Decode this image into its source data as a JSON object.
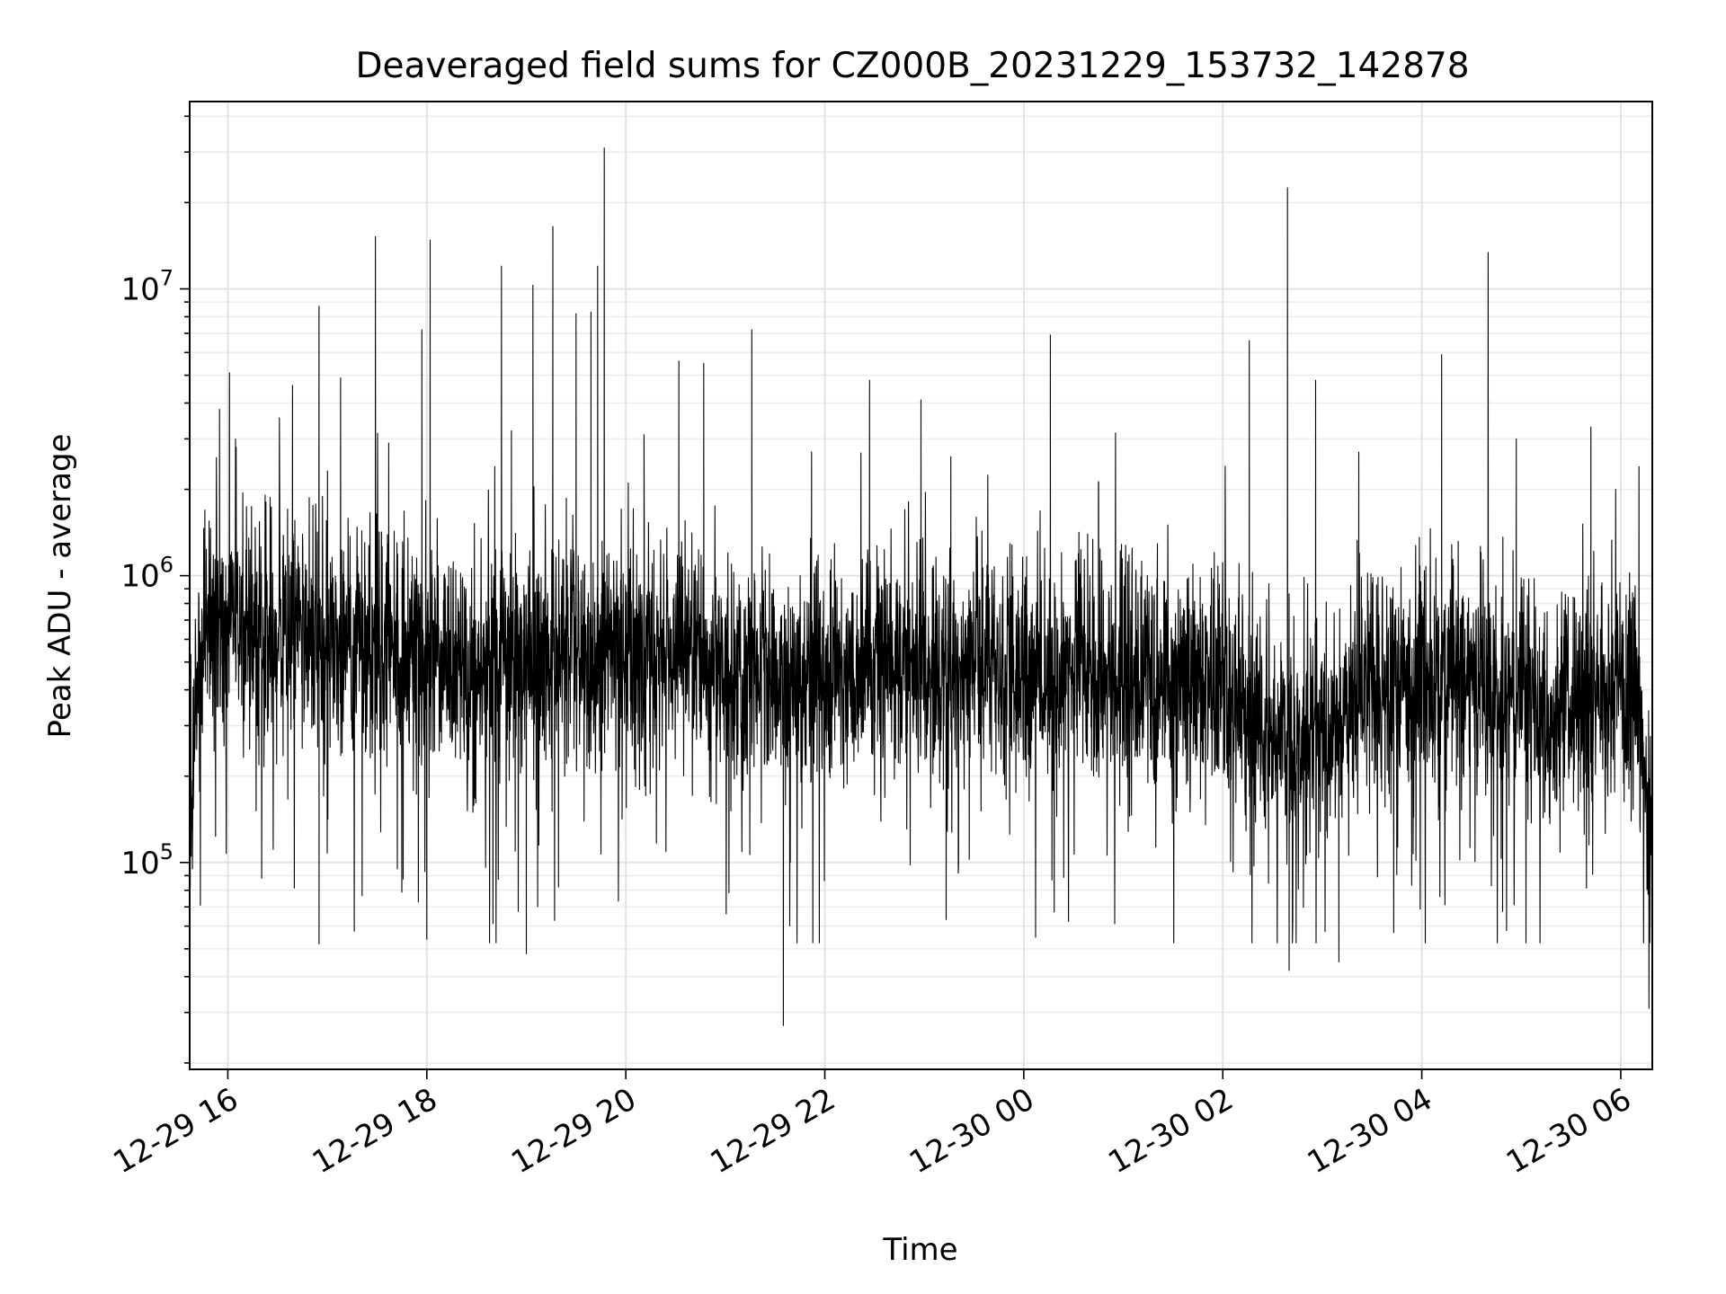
{
  "chart_data": {
    "type": "line",
    "title": "Deaveraged field sums for CZ000B_20231229_153732_142878",
    "xlabel": "Time",
    "ylabel": "Peak ADU - average",
    "yscale": "log",
    "xlim": [
      "2023-12-29 15:37",
      "2023-12-30 06:19"
    ],
    "ylim": [
      19000,
      45000000
    ],
    "grid": true,
    "line_color": "#000000",
    "x_ticks": [
      {
        "time": "2023-12-29 16:00",
        "label": "12-29 16"
      },
      {
        "time": "2023-12-29 18:00",
        "label": "12-29 18"
      },
      {
        "time": "2023-12-29 20:00",
        "label": "12-29 20"
      },
      {
        "time": "2023-12-29 22:00",
        "label": "12-29 22"
      },
      {
        "time": "2023-12-30 00:00",
        "label": "12-30 00"
      },
      {
        "time": "2023-12-30 02:00",
        "label": "12-30 02"
      },
      {
        "time": "2023-12-30 04:00",
        "label": "12-30 04"
      },
      {
        "time": "2023-12-30 06:00",
        "label": "12-30 06"
      }
    ],
    "y_ticks": [
      {
        "value": 100000,
        "base": "10",
        "exp": "5"
      },
      {
        "value": 1000000,
        "base": "10",
        "exp": "6"
      },
      {
        "value": 10000000,
        "base": "10",
        "exp": "7"
      }
    ],
    "series": [
      {
        "baseline": [
          [
            "2023-12-29 15:37",
            150000
          ],
          [
            "2023-12-29 15:45",
            700000
          ],
          [
            "2023-12-29 16:30",
            650000
          ],
          [
            "2023-12-29 17:30",
            550000
          ],
          [
            "2023-12-29 18:30",
            480000
          ],
          [
            "2023-12-29 19:30",
            520000
          ],
          [
            "2023-12-29 20:30",
            560000
          ],
          [
            "2023-12-29 21:00",
            480000
          ],
          [
            "2023-12-29 22:00",
            430000
          ],
          [
            "2023-12-29 23:00",
            470000
          ],
          [
            "2023-12-30 00:00",
            480000
          ],
          [
            "2023-12-30 01:00",
            460000
          ],
          [
            "2023-12-30 02:00",
            430000
          ],
          [
            "2023-12-30 02:30",
            280000
          ],
          [
            "2023-12-30 03:00",
            270000
          ],
          [
            "2023-12-30 03:30",
            420000
          ],
          [
            "2023-12-30 04:30",
            470000
          ],
          [
            "2023-12-30 05:15",
            330000
          ],
          [
            "2023-12-30 05:45",
            380000
          ],
          [
            "2023-12-30 06:10",
            420000
          ],
          [
            "2023-12-30 06:19",
            80000
          ]
        ],
        "peaks": [
          [
            "2023-12-29 15:55",
            3800000
          ],
          [
            "2023-12-29 16:01",
            5100000
          ],
          [
            "2023-12-29 16:05",
            2800000
          ],
          [
            "2023-12-29 16:39",
            4600000
          ],
          [
            "2023-12-29 16:55",
            8700000
          ],
          [
            "2023-12-29 17:08",
            4900000
          ],
          [
            "2023-12-29 17:29",
            15200000
          ],
          [
            "2023-12-29 17:37",
            2900000
          ],
          [
            "2023-12-29 17:57",
            7200000
          ],
          [
            "2023-12-29 18:02",
            14800000
          ],
          [
            "2023-12-29 18:41",
            2400000
          ],
          [
            "2023-12-29 18:45",
            12000000
          ],
          [
            "2023-12-29 18:51",
            3200000
          ],
          [
            "2023-12-29 19:04",
            10300000
          ],
          [
            "2023-12-29 19:16",
            16500000
          ],
          [
            "2023-12-29 19:30",
            8200000
          ],
          [
            "2023-12-29 19:39",
            8300000
          ],
          [
            "2023-12-29 19:43",
            12000000
          ],
          [
            "2023-12-29 19:47",
            31000000
          ],
          [
            "2023-12-29 20:11",
            3100000
          ],
          [
            "2023-12-29 20:32",
            5600000
          ],
          [
            "2023-12-29 20:47",
            5500000
          ],
          [
            "2023-12-29 21:16",
            7200000
          ],
          [
            "2023-12-29 21:52",
            2700000
          ],
          [
            "2023-12-29 22:27",
            4800000
          ],
          [
            "2023-12-29 22:58",
            4100000
          ],
          [
            "2023-12-29 23:16",
            2600000
          ],
          [
            "2023-12-30 00:16",
            6900000
          ],
          [
            "2023-12-30 00:45",
            2100000
          ],
          [
            "2023-12-30 02:16",
            6600000
          ],
          [
            "2023-12-30 02:39",
            22500000
          ],
          [
            "2023-12-30 02:56",
            4800000
          ],
          [
            "2023-12-30 03:22",
            2700000
          ],
          [
            "2023-12-30 04:12",
            5900000
          ],
          [
            "2023-12-30 04:40",
            13400000
          ],
          [
            "2023-12-30 04:57",
            3000000
          ],
          [
            "2023-12-30 05:42",
            3300000
          ],
          [
            "2023-12-30 06:11",
            2400000
          ]
        ],
        "dips": [
          [
            "2023-12-29 16:55",
            52000
          ],
          [
            "2023-12-29 18:00",
            54000
          ],
          [
            "2023-12-29 19:00",
            48000
          ],
          [
            "2023-12-29 21:35",
            27000
          ],
          [
            "2023-12-30 02:40",
            42000
          ],
          [
            "2023-12-30 03:10",
            45000
          ],
          [
            "2023-12-30 06:17",
            31000
          ]
        ]
      }
    ]
  }
}
